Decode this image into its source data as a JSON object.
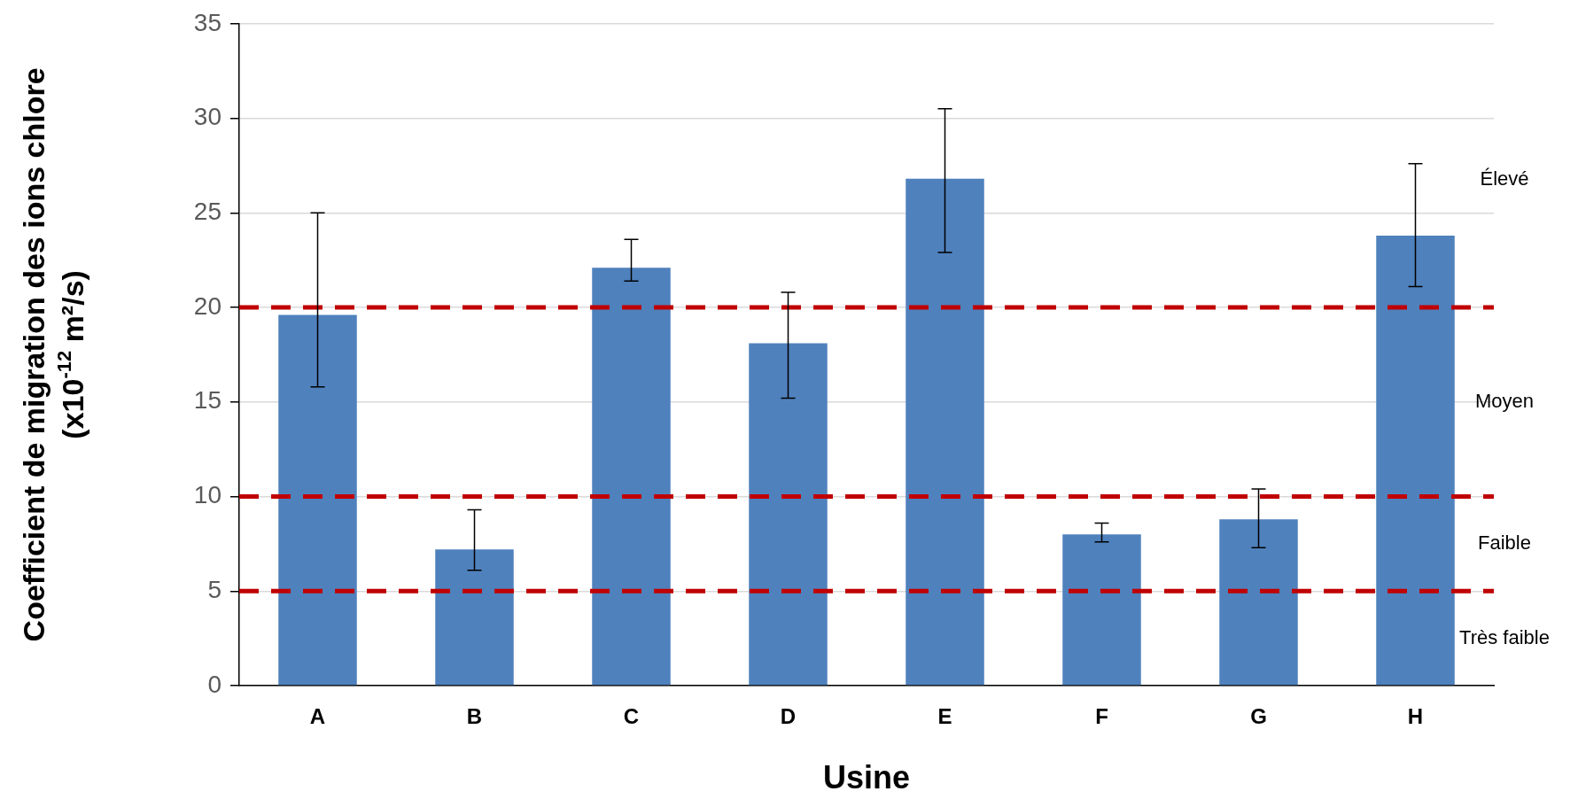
{
  "chart_data": {
    "type": "bar",
    "xlabel": "Usine",
    "ylabel": "Coefficient de migration des ions chlore (x10$^{-12}$ m²/s)",
    "categories": [
      "A",
      "B",
      "C",
      "D",
      "E",
      "F",
      "G",
      "H"
    ],
    "values": [
      19.6,
      7.2,
      22.1,
      18.1,
      26.8,
      8.0,
      8.8,
      23.8
    ],
    "errors": [
      [
        15.8,
        25.0
      ],
      [
        6.1,
        9.3
      ],
      [
        21.4,
        23.6
      ],
      [
        15.2,
        20.8
      ],
      [
        22.9,
        30.5
      ],
      [
        7.6,
        8.6
      ],
      [
        7.3,
        10.4
      ],
      [
        21.1,
        27.6
      ]
    ],
    "color": "#4f81bd",
    "ylim": [
      0,
      35
    ],
    "yticks": [
      0,
      5,
      10,
      15,
      20,
      25,
      30,
      35
    ],
    "grid": "y",
    "legend": false,
    "ref_lines": [
      {
        "axis": "y",
        "value": 20,
        "color": "#c00000",
        "line_style": "dashed"
      },
      {
        "axis": "y",
        "value": 10,
        "color": "#c00000",
        "line_style": "dashed"
      },
      {
        "axis": "y",
        "value": 5,
        "color": "#c00000",
        "line_style": "dashed"
      }
    ],
    "annotations": [
      "Élevé",
      "Moyen",
      "Faible",
      "Très faible"
    ]
  }
}
